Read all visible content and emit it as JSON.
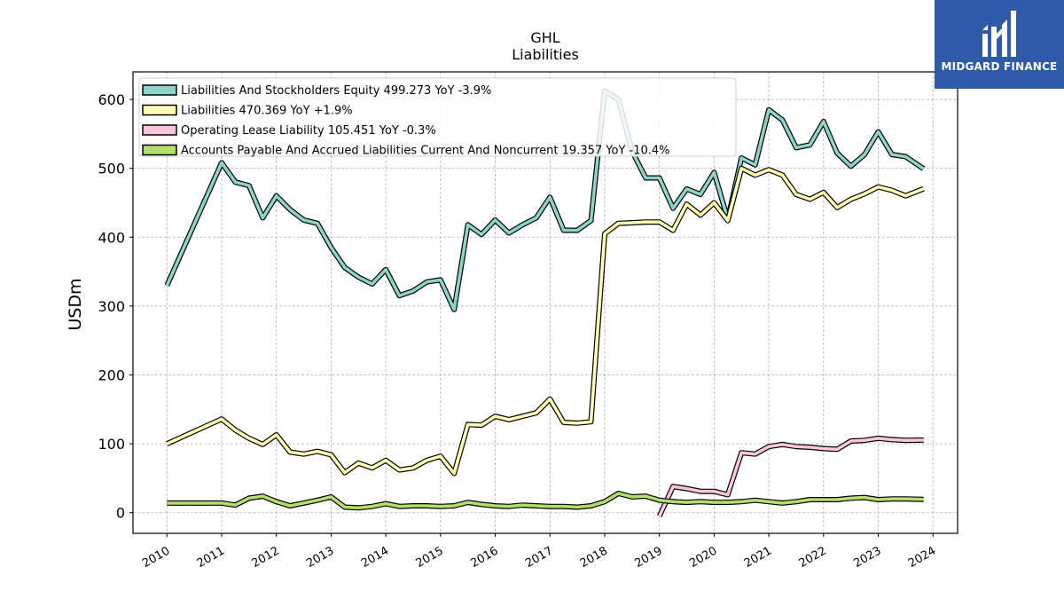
{
  "brand": {
    "name": "MIDGARD FINANCE",
    "bg_color": "#2f5aa8"
  },
  "chart_data": {
    "type": "line",
    "title": "GHL",
    "subtitle": "Liabilities",
    "xlabel": "",
    "ylabel": "USDm",
    "xlim": [
      2009.38,
      2024.45
    ],
    "ylim": [
      -30,
      640
    ],
    "x_ticks": [
      "2010",
      "2011",
      "2012",
      "2013",
      "2014",
      "2015",
      "2016",
      "2017",
      "2018",
      "2019",
      "2020",
      "2021",
      "2022",
      "2023",
      "2024"
    ],
    "y_ticks": [
      0,
      100,
      200,
      300,
      400,
      500,
      600
    ],
    "grid": true,
    "legend_position": "top-left",
    "series": [
      {
        "name": "Liabilities And Stockholders Equity  499.273 YoY -3.9%",
        "color": "#8dd3c7",
        "points": [
          [
            2010.0,
            330
          ],
          [
            2011.0,
            508
          ],
          [
            2011.25,
            480
          ],
          [
            2011.5,
            475
          ],
          [
            2011.75,
            428
          ],
          [
            2012.0,
            460
          ],
          [
            2012.25,
            440
          ],
          [
            2012.5,
            425
          ],
          [
            2012.75,
            420
          ],
          [
            2013.0,
            385
          ],
          [
            2013.25,
            356
          ],
          [
            2013.5,
            342
          ],
          [
            2013.75,
            332
          ],
          [
            2014.0,
            353
          ],
          [
            2014.25,
            315
          ],
          [
            2014.5,
            322
          ],
          [
            2014.75,
            335
          ],
          [
            2015.0,
            338
          ],
          [
            2015.25,
            295
          ],
          [
            2015.5,
            418
          ],
          [
            2015.75,
            404
          ],
          [
            2016.0,
            425
          ],
          [
            2016.25,
            406
          ],
          [
            2016.5,
            418
          ],
          [
            2016.75,
            428
          ],
          [
            2017.0,
            458
          ],
          [
            2017.25,
            410
          ],
          [
            2017.5,
            410
          ],
          [
            2017.75,
            424
          ],
          [
            2018.0,
            612
          ],
          [
            2018.25,
            600
          ],
          [
            2018.5,
            525
          ],
          [
            2018.75,
            486
          ],
          [
            2019.0,
            486
          ],
          [
            2019.25,
            442
          ],
          [
            2019.5,
            470
          ],
          [
            2019.75,
            462
          ],
          [
            2020.0,
            494
          ],
          [
            2020.25,
            426
          ],
          [
            2020.5,
            515
          ],
          [
            2020.75,
            505
          ],
          [
            2021.0,
            585
          ],
          [
            2021.25,
            570
          ],
          [
            2021.5,
            530
          ],
          [
            2021.75,
            534
          ],
          [
            2022.0,
            568
          ],
          [
            2022.25,
            522
          ],
          [
            2022.5,
            503
          ],
          [
            2022.75,
            520
          ],
          [
            2023.0,
            553
          ],
          [
            2023.25,
            520
          ],
          [
            2023.5,
            517
          ],
          [
            2023.83,
            499.273
          ]
        ]
      },
      {
        "name": "Liabilities  470.369 YoY +1.9%",
        "color": "#ffffb3",
        "points": [
          [
            2010.0,
            100
          ],
          [
            2011.0,
            136
          ],
          [
            2011.25,
            120
          ],
          [
            2011.5,
            108
          ],
          [
            2011.75,
            99
          ],
          [
            2012.0,
            113
          ],
          [
            2012.25,
            88
          ],
          [
            2012.5,
            85
          ],
          [
            2012.75,
            89
          ],
          [
            2013.0,
            84
          ],
          [
            2013.25,
            58
          ],
          [
            2013.5,
            72
          ],
          [
            2013.75,
            65
          ],
          [
            2014.0,
            76
          ],
          [
            2014.25,
            62
          ],
          [
            2014.5,
            65
          ],
          [
            2014.75,
            76
          ],
          [
            2015.0,
            82
          ],
          [
            2015.25,
            57
          ],
          [
            2015.5,
            128
          ],
          [
            2015.75,
            127
          ],
          [
            2016.0,
            140
          ],
          [
            2016.25,
            135
          ],
          [
            2016.5,
            140
          ],
          [
            2016.75,
            145
          ],
          [
            2017.0,
            165
          ],
          [
            2017.25,
            131
          ],
          [
            2017.5,
            130
          ],
          [
            2017.75,
            132
          ],
          [
            2018.0,
            405
          ],
          [
            2018.25,
            420
          ],
          [
            2018.5,
            421
          ],
          [
            2018.75,
            422
          ],
          [
            2019.0,
            422
          ],
          [
            2019.25,
            410
          ],
          [
            2019.5,
            448
          ],
          [
            2019.75,
            432
          ],
          [
            2020.0,
            450
          ],
          [
            2020.25,
            424
          ],
          [
            2020.5,
            500
          ],
          [
            2020.75,
            490
          ],
          [
            2021.0,
            498
          ],
          [
            2021.25,
            490
          ],
          [
            2021.5,
            462
          ],
          [
            2021.75,
            455
          ],
          [
            2022.0,
            465
          ],
          [
            2022.25,
            443
          ],
          [
            2022.5,
            455
          ],
          [
            2022.75,
            463
          ],
          [
            2023.0,
            473
          ],
          [
            2023.25,
            468
          ],
          [
            2023.5,
            460
          ],
          [
            2023.83,
            470.369
          ]
        ]
      },
      {
        "name": "Operating Lease Liability  105.451 YoY -0.3%",
        "color": "#fcc5dc",
        "points": [
          [
            2019.0,
            -5
          ],
          [
            2019.25,
            38
          ],
          [
            2019.5,
            35
          ],
          [
            2019.75,
            31
          ],
          [
            2020.0,
            31
          ],
          [
            2020.25,
            26
          ],
          [
            2020.5,
            87
          ],
          [
            2020.75,
            85
          ],
          [
            2021.0,
            96
          ],
          [
            2021.25,
            99
          ],
          [
            2021.5,
            96
          ],
          [
            2021.75,
            95
          ],
          [
            2022.0,
            93
          ],
          [
            2022.25,
            92
          ],
          [
            2022.5,
            104
          ],
          [
            2022.75,
            105
          ],
          [
            2023.0,
            108
          ],
          [
            2023.25,
            106
          ],
          [
            2023.5,
            105
          ],
          [
            2023.83,
            105.451
          ]
        ]
      },
      {
        "name": "Accounts Payable And Accrued Liabilities Current And Noncurrent  19.357 YoY -10.4%",
        "color": "#b3de69",
        "points": [
          [
            2010.0,
            14
          ],
          [
            2011.0,
            14
          ],
          [
            2011.25,
            11
          ],
          [
            2011.5,
            21
          ],
          [
            2011.75,
            24
          ],
          [
            2012.0,
            16
          ],
          [
            2012.25,
            10
          ],
          [
            2012.5,
            14
          ],
          [
            2012.75,
            18
          ],
          [
            2013.0,
            23
          ],
          [
            2013.25,
            8
          ],
          [
            2013.5,
            7
          ],
          [
            2013.75,
            9
          ],
          [
            2014.0,
            13
          ],
          [
            2014.25,
            9
          ],
          [
            2014.5,
            10
          ],
          [
            2014.75,
            10
          ],
          [
            2015.0,
            9
          ],
          [
            2015.25,
            10
          ],
          [
            2015.5,
            15
          ],
          [
            2015.75,
            12
          ],
          [
            2016.0,
            10
          ],
          [
            2016.25,
            9
          ],
          [
            2016.5,
            11
          ],
          [
            2016.75,
            10
          ],
          [
            2017.0,
            9
          ],
          [
            2017.25,
            9
          ],
          [
            2017.5,
            8
          ],
          [
            2017.75,
            10
          ],
          [
            2018.0,
            16
          ],
          [
            2018.25,
            28
          ],
          [
            2018.5,
            23
          ],
          [
            2018.75,
            24
          ],
          [
            2019.0,
            18
          ],
          [
            2019.25,
            16
          ],
          [
            2019.5,
            15
          ],
          [
            2019.75,
            16
          ],
          [
            2020.0,
            15
          ],
          [
            2020.25,
            15
          ],
          [
            2020.5,
            16
          ],
          [
            2020.75,
            18
          ],
          [
            2021.0,
            16
          ],
          [
            2021.25,
            14
          ],
          [
            2021.5,
            16
          ],
          [
            2021.75,
            19
          ],
          [
            2022.0,
            19
          ],
          [
            2022.25,
            19
          ],
          [
            2022.5,
            21
          ],
          [
            2022.75,
            22
          ],
          [
            2023.0,
            19
          ],
          [
            2023.25,
            20
          ],
          [
            2023.5,
            20
          ],
          [
            2023.83,
            19.357
          ]
        ]
      }
    ]
  }
}
